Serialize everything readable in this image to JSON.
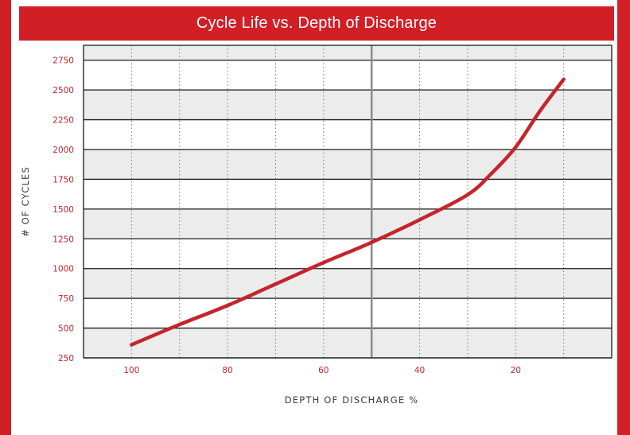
{
  "title": "Cycle Life vs. Depth of Discharge",
  "colors": {
    "frame": "#d21f26",
    "line": "#c4252b",
    "band": "#ececec",
    "grid": "#1a1a1a",
    "midline": "#8c8c8c"
  },
  "chart_data": {
    "type": "line",
    "title": "Cycle Life vs. Depth of Discharge",
    "xlabel": "DEPTH OF DISCHARGE %",
    "ylabel": "# OF CYCLES",
    "x_reversed": true,
    "xlim": [
      110,
      0
    ],
    "ylim": [
      250,
      2750
    ],
    "x_ticks": [
      100,
      80,
      60,
      40,
      20
    ],
    "y_ticks": [
      250,
      500,
      750,
      1000,
      1250,
      1500,
      1750,
      2000,
      2250,
      2500,
      2750
    ],
    "x_tick_labels": [
      "100",
      "80",
      "60",
      "40",
      "20"
    ],
    "y_tick_labels": [
      "250",
      "500",
      "750",
      "1000",
      "1250",
      "1500",
      "1750",
      "2000",
      "2250",
      "2500",
      "2750"
    ],
    "minor_x_gridlines": [
      100,
      90,
      80,
      70,
      60,
      40,
      30,
      20,
      10
    ],
    "highlight_x": 50,
    "grid": true,
    "alternating_bands": true,
    "series": [
      {
        "x": [
          100,
          90,
          80,
          70,
          60,
          50,
          40,
          30,
          25,
          20,
          15,
          10
        ],
        "values": [
          360,
          530,
          690,
          870,
          1050,
          1220,
          1410,
          1620,
          1800,
          2020,
          2320,
          2590
        ]
      }
    ]
  }
}
